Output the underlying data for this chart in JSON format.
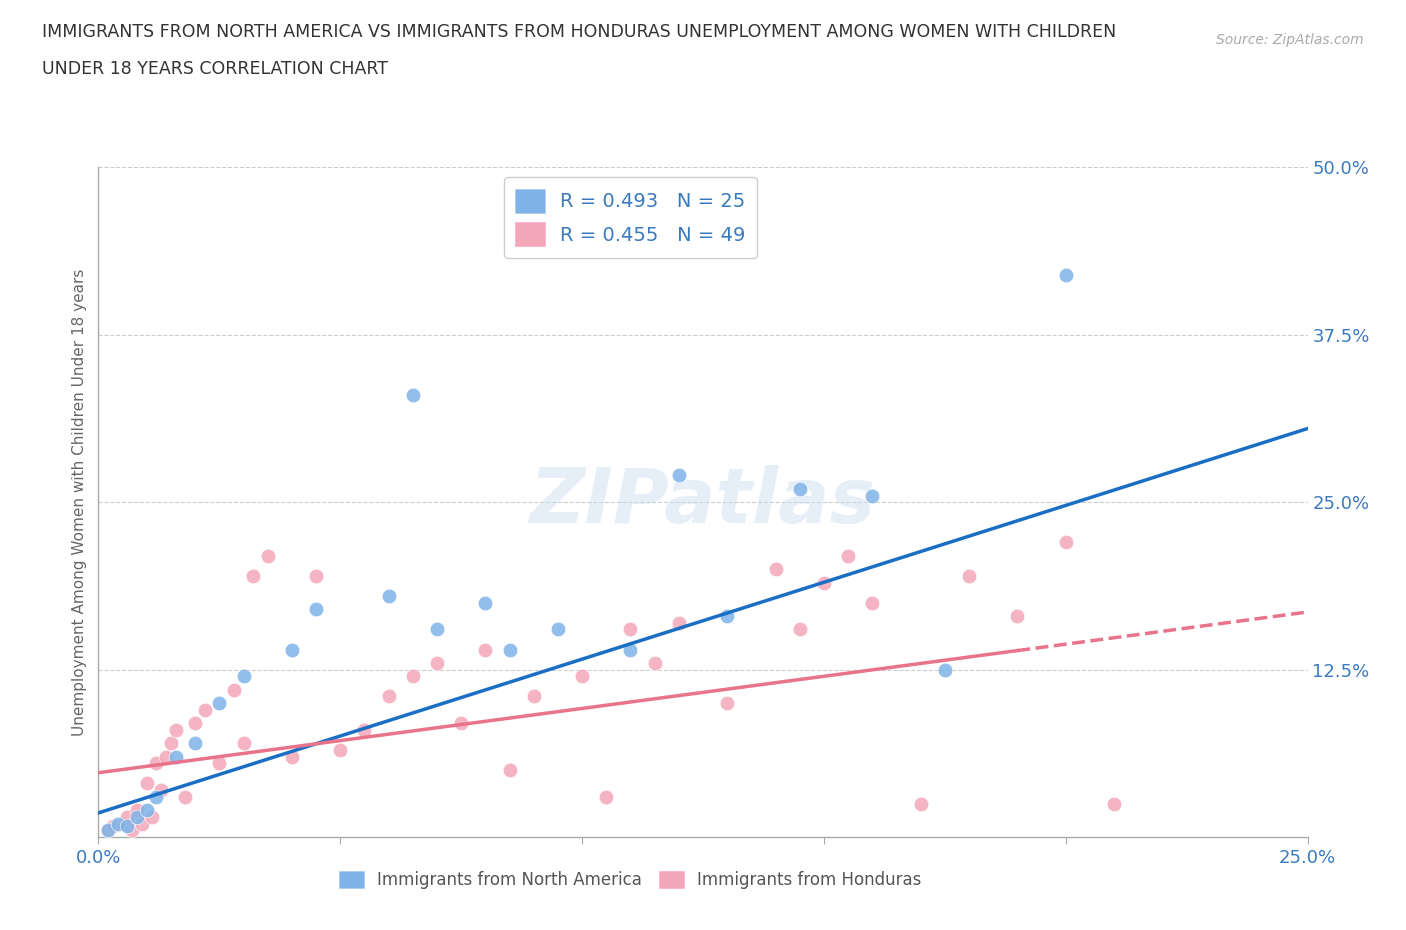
{
  "title_line1": "IMMIGRANTS FROM NORTH AMERICA VS IMMIGRANTS FROM HONDURAS UNEMPLOYMENT AMONG WOMEN WITH CHILDREN",
  "title_line2": "UNDER 18 YEARS CORRELATION CHART",
  "source_text": "Source: ZipAtlas.com",
  "ylabel": "Unemployment Among Women with Children Under 18 years",
  "xlim": [
    0.0,
    0.25
  ],
  "ylim": [
    0.0,
    0.5
  ],
  "xticks": [
    0.0,
    0.05,
    0.1,
    0.15,
    0.2,
    0.25
  ],
  "yticks": [
    0.0,
    0.125,
    0.25,
    0.375,
    0.5
  ],
  "xticklabels": [
    "0.0%",
    "",
    "",
    "",
    "",
    "25.0%"
  ],
  "yticklabels": [
    "",
    "12.5%",
    "25.0%",
    "37.5%",
    "50.0%"
  ],
  "r_north_america": 0.493,
  "n_north_america": 25,
  "r_honduras": 0.455,
  "n_honduras": 49,
  "color_north_america": "#7fb3e8",
  "color_honduras": "#f4a7b9",
  "trend_color_north_america": "#1a6fc4",
  "trend_color_honduras": "#e8738a",
  "watermark": "ZIPatlas",
  "legend_labels": [
    "Immigrants from North America",
    "Immigrants from Honduras"
  ],
  "na_trend_x0": 0.0,
  "na_trend_y0": 0.018,
  "na_trend_x1": 0.25,
  "na_trend_y1": 0.305,
  "hn_trend_x0": 0.0,
  "hn_trend_y0": 0.048,
  "hn_trend_x1": 0.25,
  "hn_trend_y1": 0.168,
  "hn_trend_solid_end": 0.19,
  "north_america_x": [
    0.002,
    0.004,
    0.006,
    0.008,
    0.01,
    0.012,
    0.016,
    0.02,
    0.025,
    0.03,
    0.04,
    0.045,
    0.06,
    0.065,
    0.07,
    0.08,
    0.085,
    0.095,
    0.11,
    0.12,
    0.13,
    0.145,
    0.16,
    0.175,
    0.2
  ],
  "north_america_y": [
    0.005,
    0.01,
    0.008,
    0.015,
    0.02,
    0.03,
    0.06,
    0.07,
    0.1,
    0.12,
    0.14,
    0.17,
    0.18,
    0.33,
    0.155,
    0.175,
    0.14,
    0.155,
    0.14,
    0.27,
    0.165,
    0.26,
    0.255,
    0.125,
    0.42
  ],
  "honduras_x": [
    0.002,
    0.003,
    0.005,
    0.006,
    0.007,
    0.008,
    0.009,
    0.01,
    0.011,
    0.012,
    0.013,
    0.014,
    0.015,
    0.016,
    0.018,
    0.02,
    0.022,
    0.025,
    0.028,
    0.03,
    0.032,
    0.035,
    0.04,
    0.045,
    0.05,
    0.055,
    0.06,
    0.065,
    0.07,
    0.075,
    0.08,
    0.085,
    0.09,
    0.1,
    0.105,
    0.11,
    0.115,
    0.12,
    0.13,
    0.14,
    0.145,
    0.15,
    0.155,
    0.16,
    0.17,
    0.18,
    0.19,
    0.2,
    0.21
  ],
  "honduras_y": [
    0.005,
    0.008,
    0.01,
    0.015,
    0.005,
    0.02,
    0.01,
    0.04,
    0.015,
    0.055,
    0.035,
    0.06,
    0.07,
    0.08,
    0.03,
    0.085,
    0.095,
    0.055,
    0.11,
    0.07,
    0.195,
    0.21,
    0.06,
    0.195,
    0.065,
    0.08,
    0.105,
    0.12,
    0.13,
    0.085,
    0.14,
    0.05,
    0.105,
    0.12,
    0.03,
    0.155,
    0.13,
    0.16,
    0.1,
    0.2,
    0.155,
    0.19,
    0.21,
    0.175,
    0.025,
    0.195,
    0.165,
    0.22,
    0.025
  ]
}
